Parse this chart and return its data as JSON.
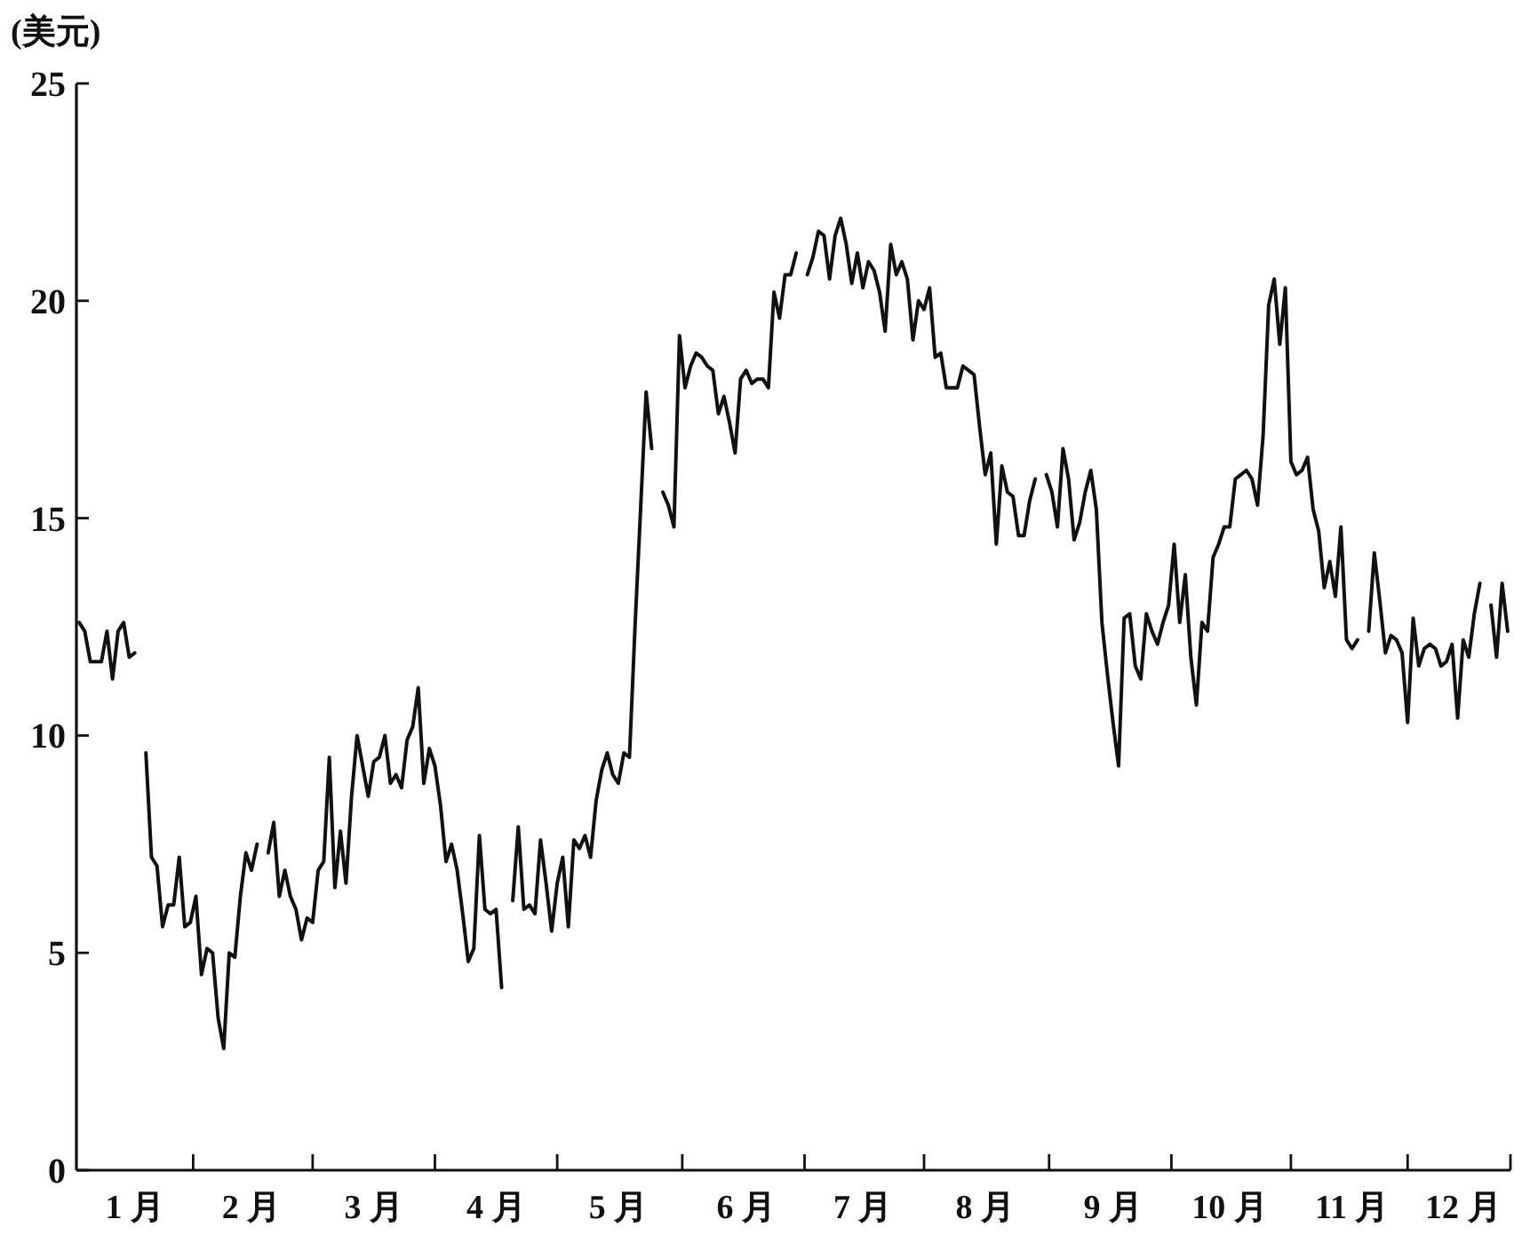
{
  "chart_data": {
    "type": "line",
    "ylabel": "(美元)",
    "ylim": [
      0,
      25
    ],
    "yticks": [
      0,
      5,
      10,
      15,
      20,
      25
    ],
    "categories": [
      null,
      null,
      null,
      null,
      null,
      null,
      null,
      null,
      null,
      null,
      "1 月",
      null,
      null,
      null,
      null,
      null,
      null,
      null,
      null,
      null,
      null,
      null,
      null,
      null,
      null,
      null,
      null,
      null,
      null,
      null,
      null,
      "2 月",
      null,
      null,
      null,
      null,
      null,
      null,
      null,
      null,
      null,
      null,
      null,
      null,
      null,
      null,
      null,
      null,
      null,
      null,
      null,
      null,
      null,
      "3 月",
      null,
      null,
      null,
      null,
      null,
      null,
      null,
      null,
      null,
      null,
      null,
      null,
      null,
      null,
      null,
      null,
      null,
      null,
      null,
      null,
      null,
      "4 月",
      null,
      null,
      null,
      null,
      null,
      null,
      null,
      null,
      null,
      null,
      null,
      null,
      null,
      null,
      null,
      null,
      null,
      null,
      null,
      null,
      null,
      "5 月",
      null,
      null,
      null,
      null,
      null,
      null,
      null,
      null,
      null,
      null,
      null,
      null,
      null,
      null,
      null,
      null,
      null,
      null,
      null,
      null,
      null,
      null,
      "6 月",
      null,
      null,
      null,
      null,
      null,
      null,
      null,
      null,
      null,
      null,
      null,
      null,
      null,
      null,
      null,
      null,
      null,
      null,
      null,
      null,
      "7 月",
      null,
      null,
      null,
      null,
      null,
      null,
      null,
      null,
      null,
      null,
      null,
      null,
      null,
      null,
      null,
      null,
      null,
      null,
      null,
      null,
      null,
      "8 月",
      null,
      null,
      null,
      null,
      null,
      null,
      null,
      null,
      null,
      null,
      null,
      null,
      null,
      null,
      null,
      null,
      null,
      null,
      null,
      null,
      null,
      null,
      "9 月",
      null,
      null,
      null,
      null,
      null,
      null,
      null,
      null,
      null,
      null,
      null,
      null,
      null,
      null,
      null,
      null,
      null,
      null,
      null,
      null,
      "10 月",
      null,
      null,
      null,
      null,
      null,
      null,
      null,
      null,
      null,
      null,
      null,
      null,
      null,
      null,
      null,
      null,
      null,
      null,
      null,
      null,
      null,
      "11 月",
      null,
      null,
      null,
      null,
      null,
      null,
      null,
      null,
      null,
      null,
      null,
      null,
      null,
      null,
      null,
      null,
      null,
      null,
      null,
      "12 月",
      null,
      null,
      null,
      null,
      null,
      null,
      null,
      null
    ],
    "series": [
      {
        "color": "#111111",
        "values": [
          12.6,
          12.4,
          11.7,
          11.7,
          11.7,
          12.4,
          11.3,
          12.4,
          12.6,
          11.8,
          11.9,
          null,
          9.6,
          7.2,
          7.0,
          5.6,
          6.1,
          6.1,
          7.2,
          5.6,
          5.7,
          6.3,
          4.5,
          5.1,
          5.0,
          3.5,
          2.8,
          5.0,
          4.9,
          6.3,
          7.3,
          6.9,
          7.5,
          null,
          7.3,
          8.0,
          6.3,
          6.9,
          6.3,
          6.0,
          5.3,
          5.8,
          5.7,
          6.9,
          7.1,
          9.5,
          6.5,
          7.8,
          6.6,
          8.6,
          10.0,
          9.3,
          8.6,
          9.4,
          9.5,
          10.0,
          8.9,
          9.1,
          8.8,
          9.9,
          10.2,
          11.1,
          8.9,
          9.7,
          9.3,
          8.4,
          7.1,
          7.5,
          6.9,
          5.9,
          4.8,
          5.1,
          7.7,
          6.0,
          5.9,
          6.0,
          4.2,
          null,
          6.2,
          7.9,
          6.0,
          6.1,
          5.9,
          7.6,
          6.6,
          5.5,
          6.6,
          7.2,
          5.6,
          7.6,
          7.4,
          7.7,
          7.2,
          8.5,
          9.2,
          9.6,
          9.1,
          8.9,
          9.6,
          9.5,
          12.5,
          15.2,
          17.9,
          16.6,
          null,
          15.6,
          15.3,
          14.8,
          19.2,
          18.0,
          18.5,
          18.8,
          18.7,
          18.5,
          18.4,
          17.4,
          17.8,
          17.2,
          16.5,
          18.2,
          18.4,
          18.1,
          18.2,
          18.2,
          18.0,
          20.2,
          19.6,
          20.6,
          20.6,
          21.1,
          null,
          20.6,
          21.0,
          21.6,
          21.5,
          20.5,
          21.5,
          21.9,
          21.3,
          20.4,
          21.1,
          20.3,
          20.9,
          20.7,
          20.2,
          19.3,
          21.3,
          20.6,
          20.9,
          20.5,
          19.1,
          20.0,
          19.8,
          20.3,
          18.7,
          18.8,
          18.0,
          18.0,
          18.0,
          18.5,
          18.4,
          18.3,
          17.1,
          16.0,
          16.5,
          14.4,
          16.2,
          15.6,
          15.5,
          14.6,
          14.6,
          15.4,
          15.9,
          null,
          16.0,
          15.6,
          14.8,
          16.6,
          15.9,
          14.5,
          14.9,
          15.6,
          16.1,
          15.2,
          12.6,
          11.4,
          10.3,
          9.3,
          12.7,
          12.8,
          11.6,
          11.3,
          12.8,
          12.4,
          12.1,
          12.6,
          13.0,
          14.4,
          12.6,
          13.7,
          11.8,
          10.7,
          12.6,
          12.4,
          14.1,
          14.4,
          14.8,
          14.8,
          15.9,
          16.0,
          16.1,
          15.9,
          15.3,
          16.9,
          19.9,
          20.5,
          19.0,
          20.3,
          16.3,
          16.0,
          16.1,
          16.4,
          15.2,
          14.7,
          13.4,
          14.0,
          13.2,
          14.8,
          12.2,
          12.0,
          12.2,
          null,
          12.4,
          14.2,
          13.1,
          11.9,
          12.3,
          12.2,
          11.9,
          10.3,
          12.7,
          11.6,
          12.0,
          12.1,
          12.0,
          11.6,
          11.7,
          12.1,
          10.4,
          12.2,
          11.8,
          12.8,
          13.5,
          null,
          13.0,
          11.8,
          13.5,
          12.4
        ]
      }
    ]
  }
}
